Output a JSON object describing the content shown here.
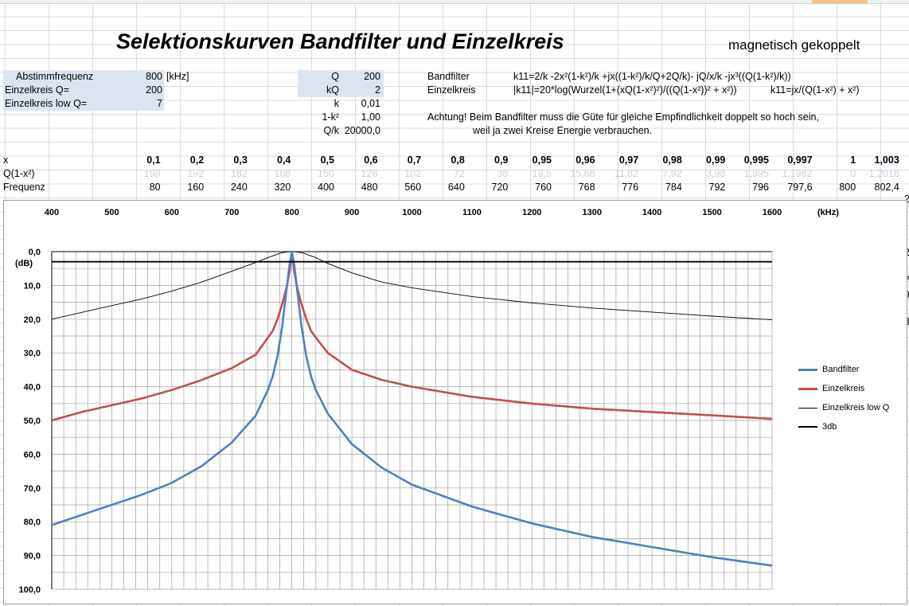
{
  "title": "Selektionskurven Bandfilter und Einzelkreis",
  "subtitle": "magnetisch gekoppelt",
  "inputs": {
    "abstimm_label": "Abstimmfrequenz",
    "abstimm_value": "800",
    "abstimm_unit": "[kHz]",
    "einzel_q_label": "Einzelkreis Q=",
    "einzel_q_value": "200",
    "einzel_low_label": "Einzelkreis low Q=",
    "einzel_low_value": "7"
  },
  "params": {
    "q_label": "Q",
    "q_value": "200",
    "kq_label": "kQ",
    "kq_value": "2",
    "k_label": "k",
    "k_value": "0,01",
    "onek_label": "1-k²",
    "onek_value": "1,00",
    "qk_label": "Q/k",
    "qk_value": "20000,0"
  },
  "formulas": {
    "bandfilter_label": "Bandfilter",
    "bandfilter_formula": "k11=2/k -2x²(1-k²)/k +jx((1-k²)/k/Q+2Q/k)- jQ/x/k -jx³((Q(1-k²)/k))",
    "einzel_label": "Einzelkreis",
    "einzel_formula": "|k11|=20*log(Wurzel(1+(xQ(1-x²)²)/((Q(1-x²))² + x²))",
    "einzel_formula2": "k11=jx/(Q(1-x²) + x²)",
    "note1": "Achtung! Beim Bandfilter muss die Güte für gleiche Empfindlichkeit doppelt so hoch sein,",
    "note2": "weil ja zwei Kreise Energie verbrauchen."
  },
  "table": {
    "row_labels": [
      "x",
      "Q(1-x²)",
      "Frequenz"
    ],
    "x": [
      "0,1",
      "0,2",
      "0,3",
      "0,4",
      "0,5",
      "0,6",
      "0,7",
      "0,8",
      "0,9",
      "0,95",
      "0,96",
      "0,97",
      "0,98",
      "0,99",
      "0,995",
      "0,997",
      "1",
      "1,003"
    ],
    "q": [
      "198",
      "192",
      "182",
      "168",
      "150",
      "128",
      "102",
      "72",
      "38",
      "19,5",
      "15,68",
      "11,82",
      "7,92",
      "3,98",
      "1,995",
      "1,1982",
      "0",
      "-1,2018"
    ],
    "f": [
      "80",
      "160",
      "240",
      "320",
      "400",
      "480",
      "560",
      "640",
      "720",
      "760",
      "768",
      "776",
      "784",
      "792",
      "796",
      "797,6",
      "800",
      "802,4"
    ]
  },
  "row_edge_digits": [
    "2",
    "2",
    "7",
    "9",
    "3"
  ],
  "chart_data": {
    "type": "line",
    "xlabel": "(kHz)",
    "ylabel": "(dB)",
    "x_ticks": [
      "400",
      "500",
      "600",
      "700",
      "800",
      "900",
      "1000",
      "1100",
      "1200",
      "1300",
      "1400",
      "1500",
      "1600"
    ],
    "y_ticks": [
      "0,0",
      "10,0",
      "20,0",
      "30,0",
      "40,0",
      "50,0",
      "60,0",
      "70,0",
      "80,0",
      "90,0",
      "100,0"
    ],
    "xlim": [
      400,
      1600
    ],
    "ylim": [
      0,
      100
    ],
    "y_inverted": true,
    "series": [
      {
        "name": "Bandfilter",
        "color": "#4f81bd",
        "x": [
          400,
          450,
          500,
          550,
          600,
          650,
          700,
          740,
          760,
          768,
          776,
          784,
          792,
          796,
          800,
          804,
          808,
          816,
          824,
          832,
          840,
          860,
          900,
          950,
          1000,
          1100,
          1200,
          1300,
          1400,
          1500,
          1600
        ],
        "y": [
          81,
          78,
          75,
          72,
          68.5,
          63.5,
          56.5,
          48.5,
          41,
          37,
          31,
          22,
          10,
          4,
          0,
          4,
          10,
          22,
          31,
          37,
          41,
          48,
          57,
          64,
          69,
          75.5,
          80.5,
          84.5,
          87.5,
          90.5,
          93
        ]
      },
      {
        "name": "Einzelkreis",
        "color": "#c0504d",
        "x": [
          400,
          450,
          500,
          550,
          600,
          650,
          700,
          740,
          760,
          768,
          776,
          784,
          792,
          796,
          800,
          804,
          808,
          816,
          824,
          832,
          840,
          860,
          900,
          950,
          1000,
          1100,
          1200,
          1300,
          1400,
          1500,
          1600
        ],
        "y": [
          50,
          47.5,
          45.5,
          43.5,
          41,
          38,
          34.5,
          30.5,
          25.5,
          23.5,
          20,
          15.5,
          10,
          6,
          0,
          6,
          10,
          15.5,
          20,
          23.5,
          25.5,
          30,
          35,
          38,
          40,
          43,
          45,
          46.5,
          47.5,
          48.5,
          49.5
        ]
      },
      {
        "name": "Einzelkreis low Q",
        "color": "#000000",
        "x": [
          400,
          450,
          500,
          550,
          600,
          650,
          700,
          740,
          760,
          780,
          790,
          800,
          810,
          820,
          840,
          860,
          900,
          950,
          1000,
          1100,
          1200,
          1300,
          1400,
          1500,
          1600
        ],
        "y": [
          20,
          18,
          16,
          14,
          11.7,
          9,
          5.8,
          3.2,
          1.8,
          0.5,
          0.1,
          0,
          0.1,
          0.5,
          1.8,
          3.5,
          6.3,
          9,
          10.7,
          13.3,
          15.2,
          16.7,
          17.9,
          19.1,
          20.2
        ]
      },
      {
        "name": "3db",
        "color": "#000000",
        "x": [
          400,
          1600
        ],
        "y": [
          3,
          3
        ]
      }
    ]
  }
}
